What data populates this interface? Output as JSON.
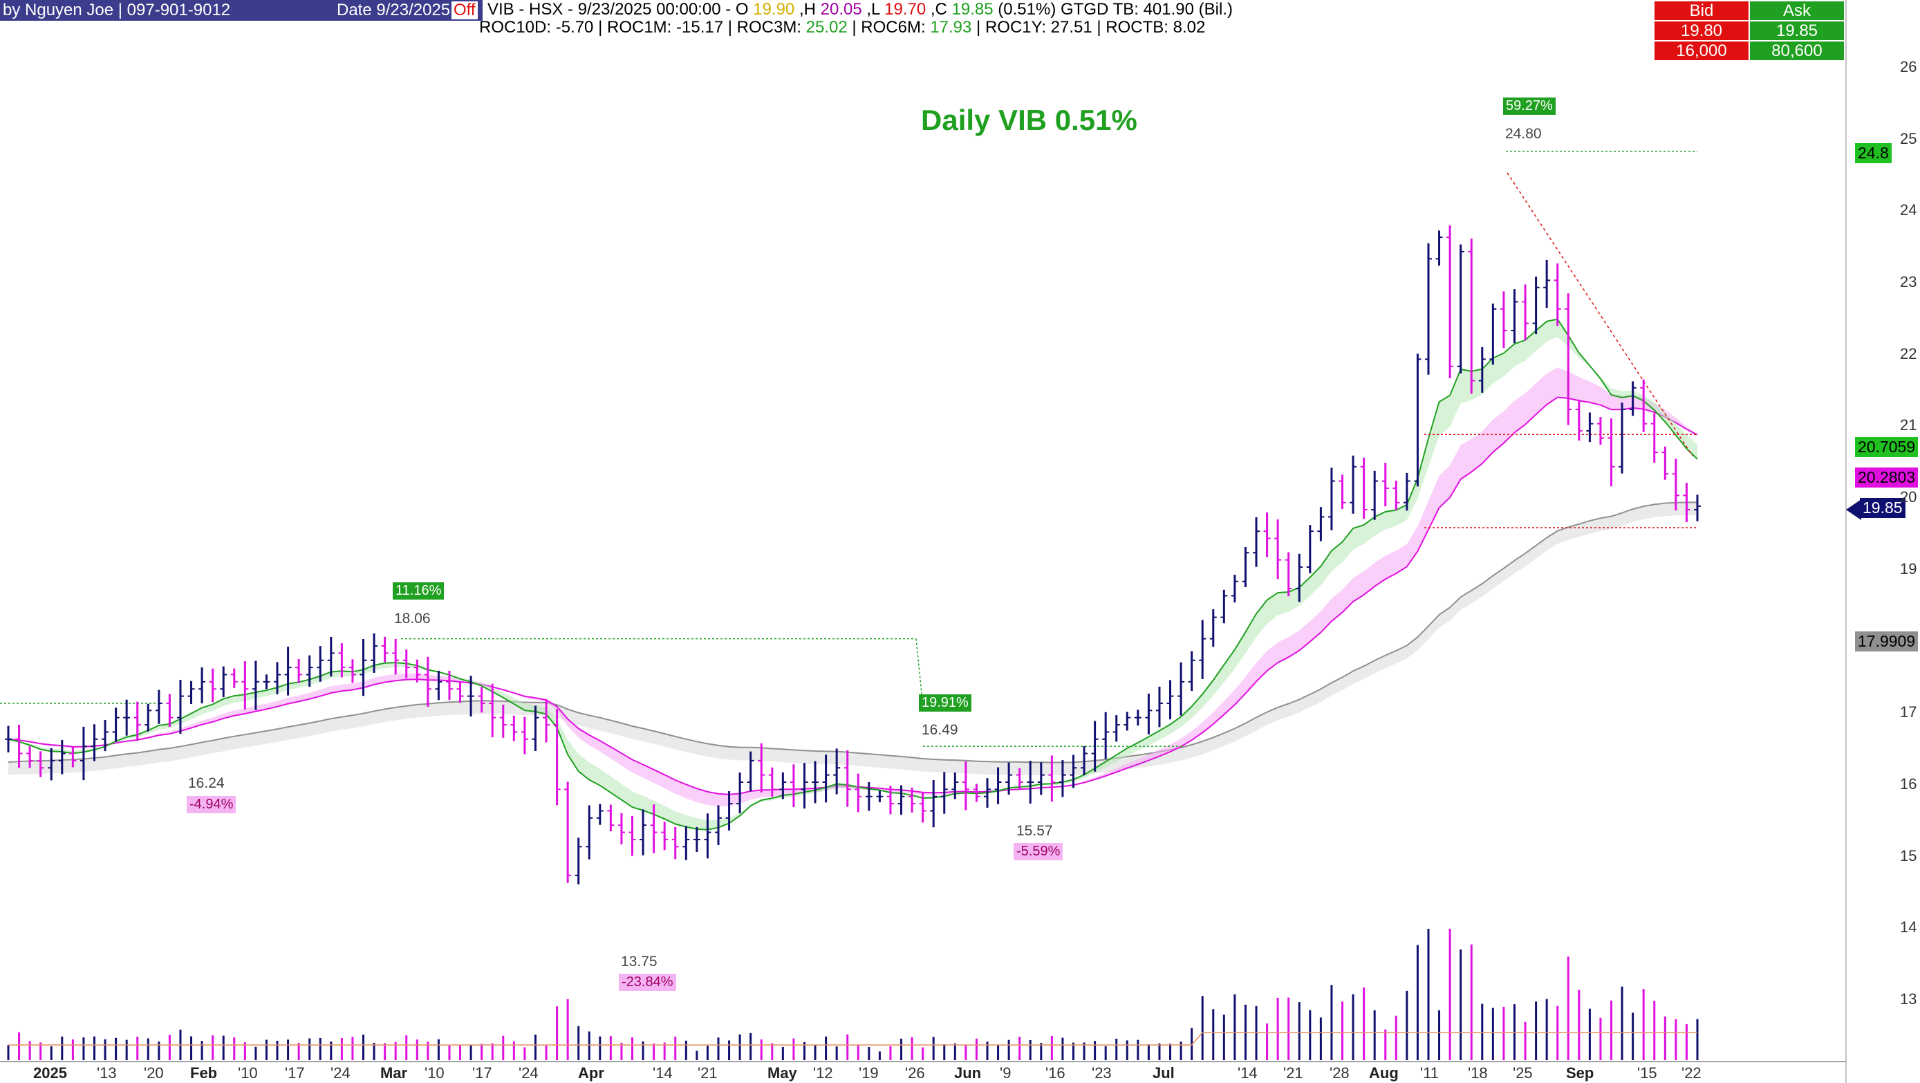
{
  "header": {
    "author": "by Nguyen Joe | 097-901-9012",
    "date": "Date 9/23/2025",
    "off_badge": "Off",
    "quote_line": "VIB - HSX -  9/23/2025 00:00:00  -  O",
    "open": "19.90",
    "high_prefix": ",H",
    "high": "20.05",
    "low_prefix": ",L",
    "low": "19.70",
    "close_prefix": ",C",
    "close": "19.85",
    "change": "(0.51%)",
    "gtgd": "GTGD TB: 401.90 (Bil.)",
    "roc_line": {
      "roc10d_label": "ROC10D:",
      "roc10d": "-5.70",
      "roc1m_label": "| ROC1M:",
      "roc1m": "-15.17",
      "roc3m_label": "| ROC3M:",
      "roc3m": "25.02",
      "roc6m_label": "| ROC6M:",
      "roc6m": "17.93",
      "roc1y_label": "| ROC1Y:",
      "roc1y": "27.51",
      "roctb_label": "| ROCTB:",
      "roctb": "8.02"
    }
  },
  "bid_ask": {
    "bid_label": "Bid",
    "ask_label": "Ask",
    "bid_price": "19.80",
    "ask_price": "19.85",
    "bid_volume": "16,000",
    "ask_volume": "80,600"
  },
  "title": "Daily  VIB  0.51%",
  "right_labels": {
    "peak_line": "24.8",
    "ema_fast": "20.7059",
    "ema_mid": "20.2803",
    "last_price": "19.85",
    "ema_slow": "17.9909"
  },
  "annotations": [
    {
      "text": "11.16%",
      "kind": "up-pct"
    },
    {
      "text": "18.06",
      "kind": "price"
    },
    {
      "text": "16.24",
      "kind": "price"
    },
    {
      "text": "-4.94%",
      "kind": "down-pct"
    },
    {
      "text": "13.75",
      "kind": "price"
    },
    {
      "text": "-23.84%",
      "kind": "down-pct"
    },
    {
      "text": "19.91%",
      "kind": "up-pct"
    },
    {
      "text": "16.49",
      "kind": "price"
    },
    {
      "text": "15.57",
      "kind": "price"
    },
    {
      "text": "-5.59%",
      "kind": "down-pct"
    },
    {
      "text": "59.27%",
      "kind": "up-pct"
    },
    {
      "text": "24.80",
      "kind": "price"
    }
  ],
  "colors": {
    "up_bar": "#101070",
    "down_bar": "#e010e0",
    "ema_fast": "#20a020",
    "ema_mid": "#e010e0",
    "ema_slow": "#909090",
    "header_bg": "#3c3c8c",
    "bid_bg": "#e01010",
    "ask_bg": "#20a020",
    "title": "#20a020"
  },
  "chart_data": {
    "type": "bar",
    "title": "Daily  VIB  0.51%",
    "symbol": "VIB",
    "exchange": "HSX",
    "price_axis": {
      "ticks": [
        "26",
        "25",
        "24",
        "23",
        "22",
        "21",
        "20",
        "19",
        "17",
        "16",
        "15",
        "14",
        "13"
      ],
      "range": [
        12.3,
        26.4
      ],
      "position": "right"
    },
    "x_axis": {
      "major_labels": [
        "2025",
        "Feb",
        "Mar",
        "Apr",
        "May",
        "Jun",
        "Jul",
        "Aug",
        "Sep"
      ],
      "minor_labels": [
        "'13",
        "'20",
        "'10",
        "'17",
        "'24",
        "'10",
        "'17",
        "'24",
        "'14",
        "'21",
        "'12",
        "'19",
        "'26",
        "'9",
        "'16",
        "'23",
        "'14",
        "'21",
        "'28",
        "'11",
        "'18",
        "'25",
        "'15",
        "'22"
      ]
    },
    "ohlc_close_series": [
      16.6,
      16.4,
      16.3,
      16.2,
      16.3,
      16.4,
      16.3,
      16.5,
      16.6,
      16.7,
      16.9,
      16.9,
      16.8,
      17.0,
      17.1,
      16.9,
      17.2,
      17.3,
      17.4,
      17.3,
      17.5,
      17.4,
      17.3,
      17.4,
      17.4,
      17.5,
      17.6,
      17.5,
      17.6,
      17.7,
      17.8,
      17.6,
      17.5,
      17.7,
      17.9,
      17.8,
      17.7,
      17.6,
      17.5,
      17.3,
      17.4,
      17.3,
      17.2,
      17.2,
      17.1,
      16.9,
      16.8,
      16.7,
      16.6,
      16.9,
      16.8,
      15.9,
      14.7,
      15.1,
      15.5,
      15.6,
      15.4,
      15.3,
      15.2,
      15.4,
      15.3,
      15.2,
      15.1,
      15.2,
      15.2,
      15.3,
      15.5,
      15.7,
      16.0,
      16.3,
      16.1,
      15.9,
      16.0,
      15.9,
      16.0,
      16.0,
      16.1,
      16.2,
      15.9,
      15.8,
      15.8,
      15.8,
      15.7,
      15.8,
      15.7,
      15.6,
      15.8,
      15.9,
      16.0,
      15.9,
      15.8,
      15.9,
      16.0,
      16.1,
      16.0,
      16.0,
      16.1,
      16.0,
      16.1,
      16.2,
      16.4,
      16.6,
      16.7,
      16.8,
      16.9,
      16.9,
      17.0,
      17.1,
      17.2,
      17.4,
      17.7,
      18.0,
      18.3,
      18.6,
      18.8,
      19.2,
      19.5,
      19.4,
      19.1,
      18.7,
      19.0,
      19.5,
      19.7,
      20.2,
      19.9,
      20.4,
      19.8,
      20.2,
      20.1,
      19.9,
      20.2,
      21.9,
      23.3,
      23.6,
      21.8,
      23.4,
      21.6,
      21.9,
      22.6,
      22.3,
      22.7,
      22.4,
      22.9,
      23.0,
      22.6,
      21.2,
      20.9,
      21.0,
      20.8,
      20.4,
      21.2,
      21.5,
      21.0,
      20.6,
      20.3,
      20.0,
      19.8,
      19.85
    ],
    "series": [
      {
        "name": "EMA fast",
        "values_hint": "green band"
      },
      {
        "name": "EMA mid",
        "values_hint": "magenta band"
      },
      {
        "name": "EMA slow",
        "values_hint": "grey band"
      }
    ],
    "volume": "bottom histogram",
    "key_levels": [
      {
        "label": "24.8",
        "value": 24.8
      },
      {
        "label": "20.7059",
        "value": 20.7059
      },
      {
        "label": "20.2803",
        "value": 20.2803
      },
      {
        "label": "19.85",
        "value": 19.85
      },
      {
        "label": "17.9909",
        "value": 17.9909
      }
    ],
    "grid": false,
    "legend": "none"
  }
}
